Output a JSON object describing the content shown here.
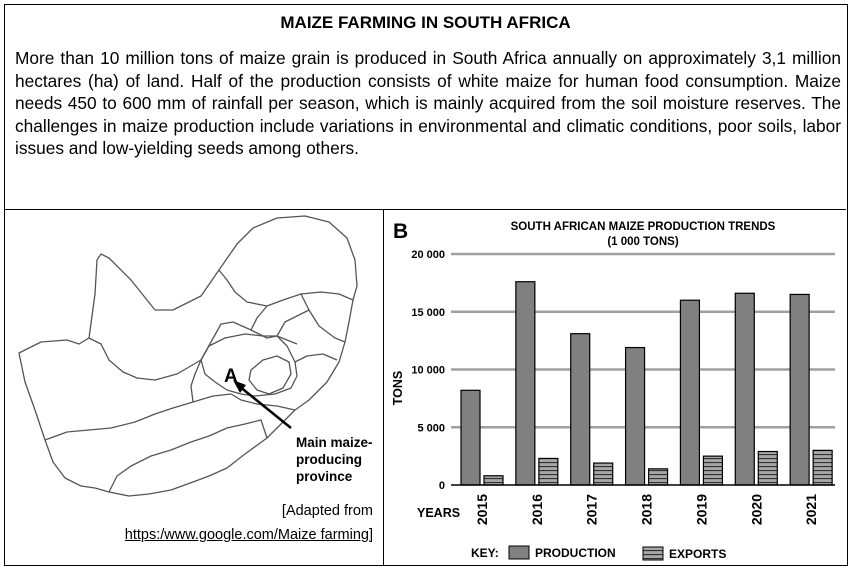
{
  "heading": "MAIZE FARMING IN SOUTH AFRICA",
  "paragraph": "More than 10 million tons of maize grain is produced in South Africa annually on approximately 3,1 million hectares (ha) of land. Half of the production consists of white maize for human food consumption. Maize needs 450 to 600 mm of rainfall per season, which is mainly acquired from the soil moisture reserves. The challenges in maize production include variations in environmental and climatic conditions, poor soils, labor issues and low-yielding seeds among others.",
  "map": {
    "label": "A",
    "callout_lines": [
      "Main maize-",
      "producing",
      "province"
    ],
    "source_line1": "[Adapted from",
    "source_line2": "https:/www.google.com/Maize farming]"
  },
  "chart_panel": {
    "label": "B",
    "colors": {
      "production": "#808080",
      "exports": "#a6a6a6",
      "grid": "#a0a0a0"
    }
  },
  "chart_data": {
    "type": "bar",
    "title": "SOUTH AFRICAN MAIZE PRODUCTION TRENDS",
    "subtitle": "(1 000 TONS)",
    "ylabel": "TONS",
    "xlabel": "YEARS",
    "categories": [
      "2015",
      "2016",
      "2017",
      "2018",
      "2019",
      "2020",
      "2021"
    ],
    "ylim": [
      0,
      20000
    ],
    "yticks": [
      0,
      5000,
      10000,
      15000,
      20000
    ],
    "ytick_labels": [
      "0",
      "5 000",
      "10 000",
      "15 000",
      "20 000"
    ],
    "grid": true,
    "series": [
      {
        "name": "PRODUCTION",
        "values": [
          8200,
          17600,
          13100,
          11900,
          16000,
          16600,
          16500
        ]
      },
      {
        "name": "EXPORTS",
        "values": [
          800,
          2300,
          1900,
          1400,
          2500,
          2900,
          3000
        ]
      }
    ],
    "legend_key": "KEY:",
    "legend": "bottom"
  }
}
